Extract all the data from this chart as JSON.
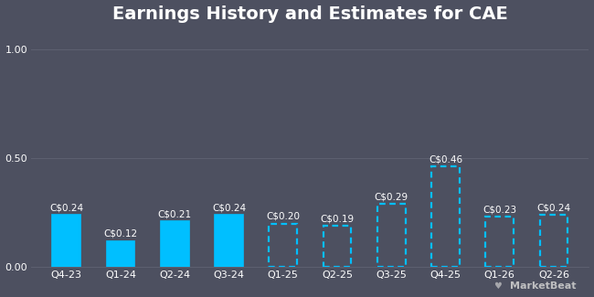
{
  "title": "Earnings History and Estimates for CAE",
  "categories": [
    "Q4-23",
    "Q1-24",
    "Q2-24",
    "Q3-24",
    "Q1-25",
    "Q2-25",
    "Q3-25",
    "Q4-25",
    "Q1-26",
    "Q2-26"
  ],
  "values": [
    0.24,
    0.12,
    0.21,
    0.24,
    0.2,
    0.19,
    0.29,
    0.46,
    0.23,
    0.24
  ],
  "labels": [
    "C$0.24",
    "C$0.12",
    "C$0.21",
    "C$0.24",
    "C$0.20",
    "C$0.19",
    "C$0.29",
    "C$0.46",
    "C$0.23",
    "C$0.24"
  ],
  "is_estimate": [
    false,
    false,
    false,
    false,
    true,
    true,
    true,
    true,
    true,
    true
  ],
  "bar_color": "#00bfff",
  "background_color": "#4d5060",
  "text_color": "#ffffff",
  "grid_color": "#5d6070",
  "yticks": [
    0.0,
    0.5,
    1.0
  ],
  "ylim": [
    0,
    1.08
  ],
  "title_fontsize": 14,
  "label_fontsize": 7.5,
  "tick_fontsize": 8,
  "bar_width": 0.52,
  "watermark_text": "MarketBeat"
}
